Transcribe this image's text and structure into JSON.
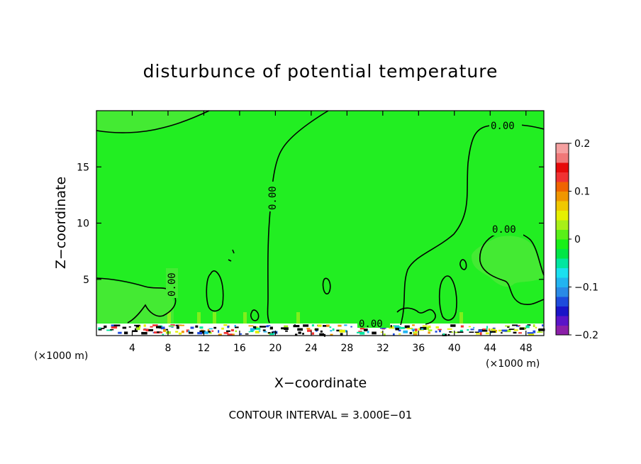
{
  "chart_data": {
    "type": "heatmap",
    "title": "disturbunce of potential temperature",
    "xlabel": "X−coordinate",
    "ylabel": "Z−coordinate",
    "x_unit_left": "(×1000 m)",
    "x_unit_right": "(×1000 m)",
    "xlim": [
      0,
      50
    ],
    "ylim": [
      0,
      20
    ],
    "x_ticks": [
      4,
      8,
      12,
      16,
      20,
      24,
      28,
      32,
      36,
      40,
      44,
      48
    ],
    "y_ticks": [
      5,
      10,
      15
    ],
    "contour_labels": [
      "0.00",
      "0.00",
      "0.00",
      "0.00",
      "0.00"
    ],
    "colorbar": {
      "range": [
        -0.2,
        0.2
      ],
      "tick_labels": [
        "0.2",
        "0.1",
        "0",
        "−0.1",
        "−0.2"
      ],
      "colors": [
        "#8b1fa8",
        "#5a14c8",
        "#1a14c8",
        "#1e4bdc",
        "#2a8ae6",
        "#22b4f0",
        "#1ae0f0",
        "#00e6a0",
        "#00e646",
        "#18f018",
        "#58f018",
        "#a8f018",
        "#e6f000",
        "#f0c800",
        "#f09600",
        "#f06400",
        "#f03232",
        "#e60a0a",
        "#f07878",
        "#f5a0a0"
      ],
      "field_color": "#22ee22",
      "upper_region_color": "#44ea33"
    },
    "footer": "CONTOUR INTERVAL = 3.000E−01"
  }
}
